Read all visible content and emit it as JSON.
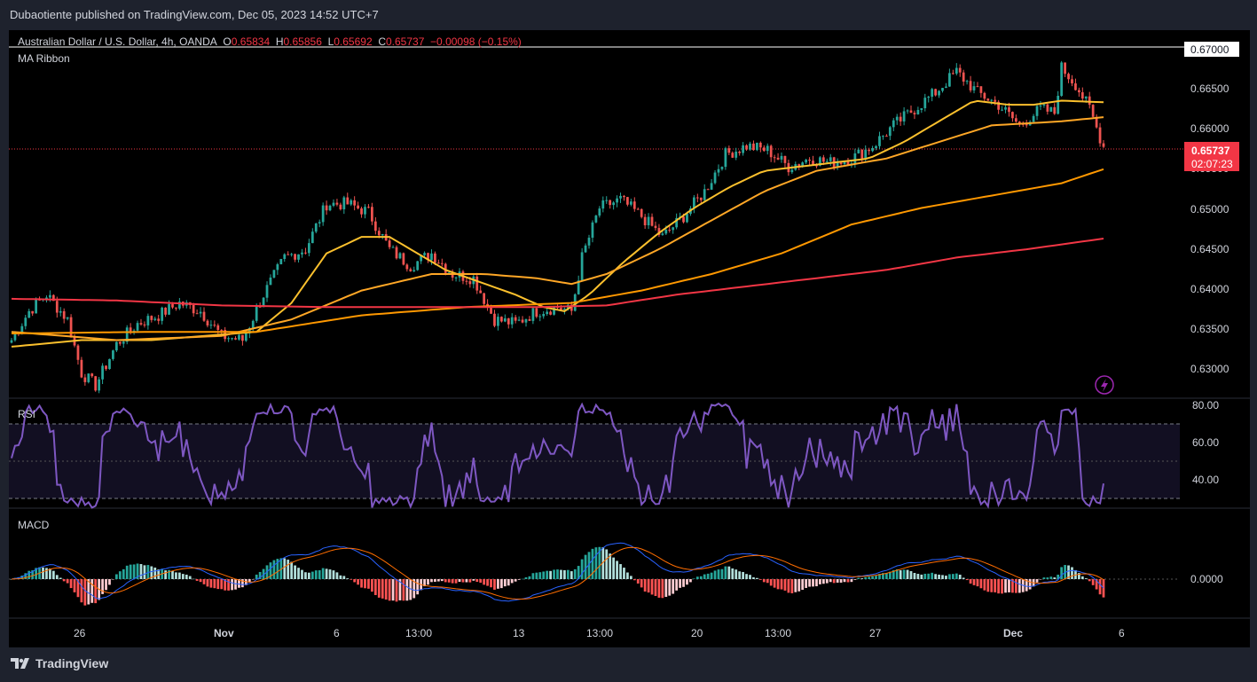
{
  "header": {
    "publisher": "Dubaotiente published on TradingView.com, Dec 05, 2023 14:52 UTC+7"
  },
  "legend": {
    "symbol": "Australian Dollar / U.S. Dollar, 4h, OANDA",
    "o_label": "O",
    "o": "0.65834",
    "h_label": "H",
    "h": "0.65856",
    "l_label": "L",
    "l": "0.65692",
    "c_label": "C",
    "c": "0.65737",
    "change": "−0.00098 (−0.15%)",
    "indicator": "MA Ribbon"
  },
  "panes": {
    "rsi_label": "RSI",
    "macd_label": "MACD"
  },
  "price_axis": {
    "ticks": [
      "0.67000",
      "0.66500",
      "0.66000",
      "0.65500",
      "0.65000",
      "0.64500",
      "0.64000",
      "0.63500",
      "0.63000"
    ],
    "last_price": "0.65737",
    "countdown": "02:07:23"
  },
  "rsi_axis": {
    "ticks": [
      "80.00",
      "60.00",
      "40.00"
    ]
  },
  "macd_axis": {
    "ticks": [
      "0.0000"
    ]
  },
  "time_axis": {
    "ticks": [
      "26",
      "Nov",
      "6",
      "13:00",
      "13",
      "13:00",
      "20",
      "13:00",
      "27",
      "Dec",
      "6"
    ]
  },
  "footer": {
    "brand": "TradingView"
  },
  "colors": {
    "up": "#26a69a",
    "down": "#ef5350",
    "ma1": "#fbc02d",
    "ma2": "#ffa726",
    "ma3": "#ff9800",
    "ma4": "#f23645",
    "rsi": "#7e57c2",
    "macd": "#2962ff",
    "signal": "#ff6d00"
  },
  "chart_data": {
    "type": "candlestick",
    "price_range": [
      0.6275,
      0.671
    ],
    "anchors": [
      {
        "t": 0,
        "p": 0.634
      },
      {
        "t": 5,
        "p": 0.6375
      },
      {
        "t": 10,
        "p": 0.6395
      },
      {
        "t": 16,
        "p": 0.6365
      },
      {
        "t": 20,
        "p": 0.63
      },
      {
        "t": 24,
        "p": 0.6285
      },
      {
        "t": 30,
        "p": 0.6335
      },
      {
        "t": 36,
        "p": 0.636
      },
      {
        "t": 42,
        "p": 0.637
      },
      {
        "t": 48,
        "p": 0.6385
      },
      {
        "t": 54,
        "p": 0.6375
      },
      {
        "t": 60,
        "p": 0.6345
      },
      {
        "t": 66,
        "p": 0.634
      },
      {
        "t": 72,
        "p": 0.6395
      },
      {
        "t": 78,
        "p": 0.644
      },
      {
        "t": 84,
        "p": 0.645
      },
      {
        "t": 90,
        "p": 0.6505
      },
      {
        "t": 96,
        "p": 0.6505
      },
      {
        "t": 102,
        "p": 0.6495
      },
      {
        "t": 108,
        "p": 0.645
      },
      {
        "t": 114,
        "p": 0.643
      },
      {
        "t": 120,
        "p": 0.6445
      },
      {
        "t": 126,
        "p": 0.642
      },
      {
        "t": 132,
        "p": 0.6415
      },
      {
        "t": 138,
        "p": 0.6365
      },
      {
        "t": 144,
        "p": 0.636
      },
      {
        "t": 150,
        "p": 0.6375
      },
      {
        "t": 156,
        "p": 0.638
      },
      {
        "t": 160,
        "p": 0.6375
      },
      {
        "t": 163,
        "p": 0.644
      },
      {
        "t": 168,
        "p": 0.65
      },
      {
        "t": 174,
        "p": 0.651
      },
      {
        "t": 180,
        "p": 0.649
      },
      {
        "t": 186,
        "p": 0.6465
      },
      {
        "t": 192,
        "p": 0.649
      },
      {
        "t": 198,
        "p": 0.652
      },
      {
        "t": 204,
        "p": 0.6565
      },
      {
        "t": 210,
        "p": 0.6575
      },
      {
        "t": 216,
        "p": 0.657
      },
      {
        "t": 222,
        "p": 0.655
      },
      {
        "t": 228,
        "p": 0.656
      },
      {
        "t": 234,
        "p": 0.6555
      },
      {
        "t": 240,
        "p": 0.656
      },
      {
        "t": 246,
        "p": 0.6575
      },
      {
        "t": 252,
        "p": 0.66
      },
      {
        "t": 258,
        "p": 0.662
      },
      {
        "t": 264,
        "p": 0.664
      },
      {
        "t": 270,
        "p": 0.6665
      },
      {
        "t": 276,
        "p": 0.664
      },
      {
        "t": 282,
        "p": 0.6625
      },
      {
        "t": 288,
        "p": 0.66
      },
      {
        "t": 294,
        "p": 0.662
      },
      {
        "t": 298,
        "p": 0.6615
      },
      {
        "t": 300,
        "p": 0.667
      },
      {
        "t": 304,
        "p": 0.665
      },
      {
        "t": 308,
        "p": 0.662
      },
      {
        "t": 312,
        "p": 0.6574
      }
    ],
    "bar_count": 313,
    "ma_ribbon": [
      {
        "name": "MA 1",
        "points": [
          [
            0,
            0.6332
          ],
          [
            20,
            0.634
          ],
          [
            40,
            0.634
          ],
          [
            55,
            0.6345
          ],
          [
            70,
            0.635
          ],
          [
            80,
            0.6385
          ],
          [
            90,
            0.6445
          ],
          [
            100,
            0.6465
          ],
          [
            108,
            0.6465
          ],
          [
            116,
            0.6445
          ],
          [
            124,
            0.6425
          ],
          [
            134,
            0.641
          ],
          [
            144,
            0.6395
          ],
          [
            152,
            0.638
          ],
          [
            158,
            0.6375
          ],
          [
            165,
            0.6395
          ],
          [
            175,
            0.6435
          ],
          [
            185,
            0.647
          ],
          [
            195,
            0.65
          ],
          [
            205,
            0.6525
          ],
          [
            215,
            0.6545
          ],
          [
            225,
            0.655
          ],
          [
            235,
            0.6555
          ],
          [
            245,
            0.656
          ],
          [
            255,
            0.658
          ],
          [
            265,
            0.6605
          ],
          [
            275,
            0.663
          ],
          [
            285,
            0.6625
          ],
          [
            292,
            0.6625
          ],
          [
            300,
            0.663
          ],
          [
            312,
            0.6628
          ]
        ]
      },
      {
        "name": "MA 2",
        "points": [
          [
            0,
            0.635
          ],
          [
            30,
            0.634
          ],
          [
            60,
            0.6345
          ],
          [
            80,
            0.6365
          ],
          [
            100,
            0.64
          ],
          [
            120,
            0.642
          ],
          [
            135,
            0.642
          ],
          [
            150,
            0.6415
          ],
          [
            160,
            0.6408
          ],
          [
            170,
            0.642
          ],
          [
            185,
            0.645
          ],
          [
            200,
            0.6485
          ],
          [
            215,
            0.652
          ],
          [
            230,
            0.6545
          ],
          [
            250,
            0.656
          ],
          [
            265,
            0.658
          ],
          [
            280,
            0.66
          ],
          [
            300,
            0.6605
          ],
          [
            312,
            0.661
          ]
        ]
      },
      {
        "name": "MA 3",
        "points": [
          [
            0,
            0.6348
          ],
          [
            40,
            0.635
          ],
          [
            70,
            0.635
          ],
          [
            100,
            0.637
          ],
          [
            130,
            0.638
          ],
          [
            160,
            0.6385
          ],
          [
            180,
            0.64
          ],
          [
            200,
            0.642
          ],
          [
            220,
            0.6445
          ],
          [
            240,
            0.648
          ],
          [
            260,
            0.65
          ],
          [
            280,
            0.6515
          ],
          [
            300,
            0.653
          ],
          [
            312,
            0.6547
          ]
        ]
      },
      {
        "name": "MA 4",
        "points": [
          [
            0,
            0.639
          ],
          [
            30,
            0.6388
          ],
          [
            60,
            0.6382
          ],
          [
            90,
            0.638
          ],
          [
            120,
            0.638
          ],
          [
            150,
            0.638
          ],
          [
            170,
            0.6382
          ],
          [
            190,
            0.6395
          ],
          [
            210,
            0.6405
          ],
          [
            230,
            0.6415
          ],
          [
            250,
            0.6425
          ],
          [
            270,
            0.644
          ],
          [
            290,
            0.645
          ],
          [
            312,
            0.6463
          ]
        ]
      }
    ],
    "rsi": {
      "range": [
        25,
        85
      ],
      "bands": [
        70,
        50,
        30
      ],
      "last": 38
    },
    "macd": {
      "last": -0.001
    }
  }
}
